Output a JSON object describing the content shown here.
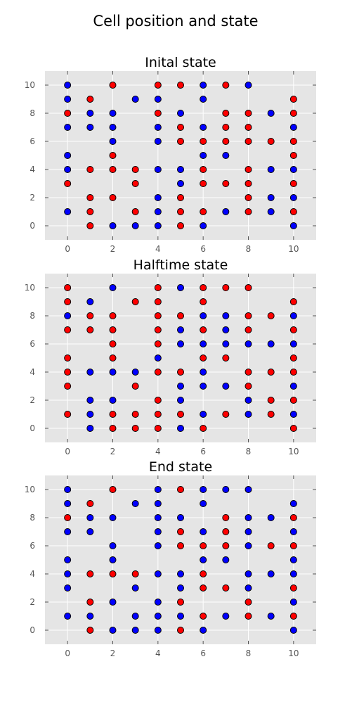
{
  "figure": {
    "title": "Cell position and state"
  },
  "colors": {
    "plot_bg": "#e5e5e5",
    "grid": "#ffffff",
    "red": "#ff0000",
    "blue": "#0000ff"
  },
  "chart_data": [
    {
      "type": "scatter",
      "title": "Inital state",
      "xlim": [
        -1,
        11
      ],
      "ylim": [
        -1,
        11
      ],
      "xticks": [
        0,
        2,
        4,
        6,
        8,
        10
      ],
      "yticks": [
        0,
        2,
        4,
        6,
        8,
        10
      ],
      "grid": true,
      "series": [
        {
          "color": "#ff0000",
          "points": [
            [
              0,
              8
            ],
            [
              0,
              3
            ],
            [
              1,
              9
            ],
            [
              1,
              4
            ],
            [
              1,
              2
            ],
            [
              1,
              1
            ],
            [
              1,
              0
            ],
            [
              2,
              10
            ],
            [
              2,
              5
            ],
            [
              2,
              4
            ],
            [
              2,
              2
            ],
            [
              3,
              4
            ],
            [
              3,
              3
            ],
            [
              3,
              1
            ],
            [
              4,
              10
            ],
            [
              4,
              8
            ],
            [
              5,
              10
            ],
            [
              5,
              7
            ],
            [
              5,
              6
            ],
            [
              5,
              2
            ],
            [
              5,
              1
            ],
            [
              5,
              0
            ],
            [
              6,
              6
            ],
            [
              6,
              4
            ],
            [
              6,
              3
            ],
            [
              6,
              1
            ],
            [
              7,
              10
            ],
            [
              7,
              8
            ],
            [
              7,
              7
            ],
            [
              7,
              6
            ],
            [
              7,
              3
            ],
            [
              8,
              8
            ],
            [
              8,
              7
            ],
            [
              8,
              6
            ],
            [
              8,
              4
            ],
            [
              8,
              3
            ],
            [
              8,
              2
            ],
            [
              8,
              1
            ],
            [
              9,
              6
            ],
            [
              10,
              9
            ],
            [
              10,
              8
            ],
            [
              10,
              6
            ],
            [
              10,
              5
            ],
            [
              10,
              3
            ],
            [
              10,
              1
            ]
          ]
        },
        {
          "color": "#0000ff",
          "points": [
            [
              0,
              10
            ],
            [
              0,
              9
            ],
            [
              0,
              7
            ],
            [
              0,
              5
            ],
            [
              0,
              4
            ],
            [
              0,
              1
            ],
            [
              1,
              8
            ],
            [
              1,
              7
            ],
            [
              2,
              8
            ],
            [
              2,
              7
            ],
            [
              2,
              6
            ],
            [
              2,
              0
            ],
            [
              3,
              9
            ],
            [
              3,
              0
            ],
            [
              4,
              9
            ],
            [
              4,
              7
            ],
            [
              4,
              6
            ],
            [
              4,
              4
            ],
            [
              4,
              2
            ],
            [
              4,
              1
            ],
            [
              4,
              0
            ],
            [
              5,
              8
            ],
            [
              5,
              4
            ],
            [
              5,
              3
            ],
            [
              6,
              10
            ],
            [
              6,
              9
            ],
            [
              6,
              7
            ],
            [
              6,
              5
            ],
            [
              6,
              0
            ],
            [
              7,
              5
            ],
            [
              7,
              1
            ],
            [
              8,
              10
            ],
            [
              9,
              8
            ],
            [
              9,
              4
            ],
            [
              9,
              2
            ],
            [
              9,
              1
            ],
            [
              10,
              7
            ],
            [
              10,
              4
            ],
            [
              10,
              2
            ],
            [
              10,
              0
            ]
          ]
        }
      ]
    },
    {
      "type": "scatter",
      "title": "Halftime state",
      "xlim": [
        -1,
        11
      ],
      "ylim": [
        -1,
        11
      ],
      "xticks": [
        0,
        2,
        4,
        6,
        8,
        10
      ],
      "yticks": [
        0,
        2,
        4,
        6,
        8,
        10
      ],
      "grid": true,
      "series": [
        {
          "color": "#ff0000",
          "points": [
            [
              0,
              10
            ],
            [
              0,
              9
            ],
            [
              0,
              7
            ],
            [
              0,
              5
            ],
            [
              0,
              4
            ],
            [
              0,
              3
            ],
            [
              0,
              1
            ],
            [
              1,
              8
            ],
            [
              1,
              7
            ],
            [
              2,
              8
            ],
            [
              2,
              7
            ],
            [
              2,
              6
            ],
            [
              2,
              5
            ],
            [
              2,
              1
            ],
            [
              2,
              0
            ],
            [
              3,
              9
            ],
            [
              3,
              3
            ],
            [
              3,
              1
            ],
            [
              3,
              0
            ],
            [
              4,
              10
            ],
            [
              4,
              9
            ],
            [
              4,
              8
            ],
            [
              4,
              7
            ],
            [
              4,
              6
            ],
            [
              4,
              4
            ],
            [
              4,
              2
            ],
            [
              4,
              1
            ],
            [
              4,
              0
            ],
            [
              5,
              8
            ],
            [
              5,
              4
            ],
            [
              5,
              1
            ],
            [
              6,
              10
            ],
            [
              6,
              9
            ],
            [
              6,
              7
            ],
            [
              6,
              5
            ],
            [
              6,
              0
            ],
            [
              7,
              10
            ],
            [
              7,
              5
            ],
            [
              7,
              1
            ],
            [
              8,
              10
            ],
            [
              8,
              8
            ],
            [
              8,
              7
            ],
            [
              8,
              4
            ],
            [
              8,
              3
            ],
            [
              9,
              8
            ],
            [
              9,
              4
            ],
            [
              9,
              2
            ],
            [
              9,
              1
            ],
            [
              10,
              9
            ],
            [
              10,
              7
            ],
            [
              10,
              5
            ],
            [
              10,
              4
            ],
            [
              10,
              2
            ],
            [
              10,
              0
            ]
          ]
        },
        {
          "color": "#0000ff",
          "points": [
            [
              0,
              8
            ],
            [
              1,
              9
            ],
            [
              1,
              4
            ],
            [
              1,
              2
            ],
            [
              1,
              1
            ],
            [
              1,
              0
            ],
            [
              2,
              10
            ],
            [
              2,
              4
            ],
            [
              2,
              2
            ],
            [
              3,
              4
            ],
            [
              4,
              5
            ],
            [
              5,
              10
            ],
            [
              5,
              7
            ],
            [
              5,
              6
            ],
            [
              5,
              3
            ],
            [
              5,
              2
            ],
            [
              5,
              0
            ],
            [
              6,
              8
            ],
            [
              6,
              6
            ],
            [
              6,
              4
            ],
            [
              6,
              3
            ],
            [
              6,
              1
            ],
            [
              7,
              8
            ],
            [
              7,
              7
            ],
            [
              7,
              6
            ],
            [
              7,
              3
            ],
            [
              8,
              6
            ],
            [
              8,
              2
            ],
            [
              8,
              1
            ],
            [
              9,
              6
            ],
            [
              10,
              8
            ],
            [
              10,
              6
            ],
            [
              10,
              3
            ],
            [
              10,
              1
            ]
          ]
        }
      ]
    },
    {
      "type": "scatter",
      "title": "End state",
      "xlim": [
        -1,
        11
      ],
      "ylim": [
        -1,
        11
      ],
      "xticks": [
        0,
        2,
        4,
        6,
        8,
        10
      ],
      "yticks": [
        0,
        2,
        4,
        6,
        8,
        10
      ],
      "grid": true,
      "series": [
        {
          "color": "#ff0000",
          "points": [
            [
              0,
              8
            ],
            [
              1,
              9
            ],
            [
              1,
              4
            ],
            [
              1,
              2
            ],
            [
              1,
              0
            ],
            [
              2,
              10
            ],
            [
              2,
              4
            ],
            [
              3,
              4
            ],
            [
              5,
              10
            ],
            [
              5,
              7
            ],
            [
              5,
              6
            ],
            [
              5,
              2
            ],
            [
              5,
              0
            ],
            [
              6,
              6
            ],
            [
              6,
              4
            ],
            [
              6,
              3
            ],
            [
              6,
              1
            ],
            [
              7,
              8
            ],
            [
              7,
              7
            ],
            [
              7,
              6
            ],
            [
              7,
              3
            ],
            [
              8,
              2
            ],
            [
              8,
              1
            ],
            [
              9,
              6
            ],
            [
              10,
              8
            ],
            [
              10,
              6
            ],
            [
              10,
              3
            ],
            [
              10,
              1
            ]
          ]
        },
        {
          "color": "#0000ff",
          "points": [
            [
              0,
              10
            ],
            [
              0,
              9
            ],
            [
              0,
              7
            ],
            [
              0,
              5
            ],
            [
              0,
              4
            ],
            [
              0,
              3
            ],
            [
              0,
              1
            ],
            [
              1,
              8
            ],
            [
              1,
              7
            ],
            [
              1,
              1
            ],
            [
              2,
              8
            ],
            [
              2,
              6
            ],
            [
              2,
              5
            ],
            [
              2,
              2
            ],
            [
              2,
              0
            ],
            [
              3,
              9
            ],
            [
              3,
              3
            ],
            [
              3,
              1
            ],
            [
              3,
              0
            ],
            [
              4,
              10
            ],
            [
              4,
              9
            ],
            [
              4,
              8
            ],
            [
              4,
              7
            ],
            [
              4,
              6
            ],
            [
              4,
              4
            ],
            [
              4,
              2
            ],
            [
              4,
              1
            ],
            [
              4,
              0
            ],
            [
              5,
              8
            ],
            [
              5,
              4
            ],
            [
              5,
              3
            ],
            [
              5,
              1
            ],
            [
              6,
              10
            ],
            [
              6,
              9
            ],
            [
              6,
              7
            ],
            [
              6,
              5
            ],
            [
              6,
              0
            ],
            [
              7,
              10
            ],
            [
              7,
              5
            ],
            [
              7,
              1
            ],
            [
              8,
              10
            ],
            [
              8,
              8
            ],
            [
              8,
              7
            ],
            [
              8,
              6
            ],
            [
              8,
              4
            ],
            [
              8,
              3
            ],
            [
              9,
              8
            ],
            [
              9,
              4
            ],
            [
              9,
              1
            ],
            [
              10,
              9
            ],
            [
              10,
              7
            ],
            [
              10,
              5
            ],
            [
              10,
              4
            ],
            [
              10,
              2
            ],
            [
              10,
              0
            ]
          ]
        }
      ]
    }
  ]
}
